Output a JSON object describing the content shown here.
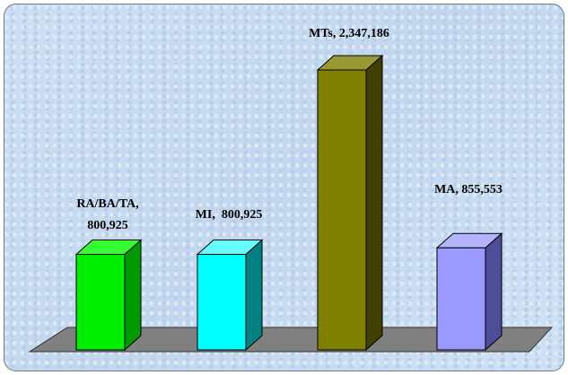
{
  "chart_data": {
    "type": "bar3d",
    "values": [
      800925,
      800925,
      2347186,
      855553
    ],
    "value_labels": [
      "RA/BA/TA, 800,925",
      "MI,  800,925",
      "MTs, 2,347,186",
      "MA, 855,553"
    ],
    "colors": [
      "#00ee00",
      "#00ffff",
      "#808000",
      "#9999ff"
    ],
    "side_colors": [
      "#009900",
      "#008080",
      "#404000",
      "#4d4d99"
    ],
    "top_colors": [
      "#33ff33",
      "#66ffff",
      "#999933",
      "#b3b3ff"
    ]
  }
}
